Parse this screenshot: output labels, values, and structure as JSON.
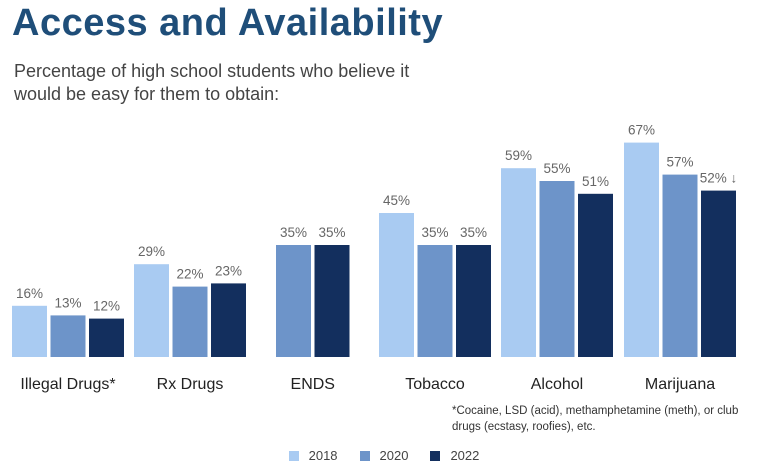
{
  "title": "Access and Availability",
  "subtitle": "Percentage of high school students who believe it would be easy for them to obtain:",
  "footnote": "*Cocaine, LSD (acid), methamphetamine (meth), or club drugs (ecstasy, roofies), etc.",
  "colors": {
    "2018": "#a9cbf2",
    "2020": "#6d94c9",
    "2022": "#132f5e",
    "label_text": "#666666",
    "axis_text": "#222222"
  },
  "chart_data": {
    "type": "bar",
    "title": "Access and Availability",
    "subtitle": "Percentage of high school students who believe it would be easy for them to obtain:",
    "categories": [
      "Illegal Drugs*",
      "Rx Drugs",
      "ENDS",
      "Tobacco",
      "Alcohol",
      "Marijuana"
    ],
    "series": [
      {
        "name": "2018",
        "values": [
          16,
          29,
          null,
          45,
          59,
          67
        ]
      },
      {
        "name": "2020",
        "values": [
          13,
          22,
          35,
          35,
          55,
          57
        ]
      },
      {
        "name": "2022",
        "values": [
          12,
          23,
          35,
          35,
          51,
          52
        ]
      }
    ],
    "data_labels": [
      [
        "16%",
        "29%",
        null,
        "45%",
        "59%",
        "67%"
      ],
      [
        "13%",
        "22%",
        "35%",
        "35%",
        "55%",
        "57%"
      ],
      [
        "12%",
        "23%",
        "35%",
        "35%",
        "51%",
        "52% ↓"
      ]
    ],
    "ylim": [
      0,
      70
    ],
    "grid": false,
    "legend_position": "bottom-center"
  }
}
